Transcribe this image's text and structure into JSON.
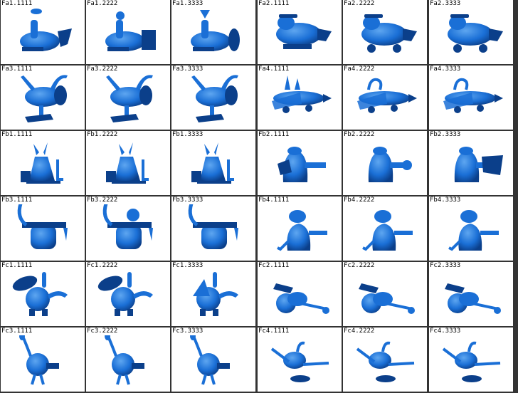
{
  "grid": {
    "columns": 6,
    "rows": 6,
    "object_color": "#1a6fd6",
    "object_dark": "#0b3f8a",
    "object_light": "#5ea6f0",
    "labels": [
      "Fa1.1111",
      "Fa1.2222",
      "Fa1.3333",
      "Fa2.1111",
      "Fa2.2222",
      "Fa2.3333",
      "Fa3.1111",
      "Fa3.2222",
      "Fa3.3333",
      "Fa4.1111",
      "Fa4.2222",
      "Fa4.3333",
      "Fb1.1111",
      "Fb1.2222",
      "Fb1.3333",
      "Fb2.1111",
      "Fb2.2222",
      "Fb2.3333",
      "Fb3.1111",
      "Fb3.2222",
      "Fb3.3333",
      "Fb4.1111",
      "Fb4.2222",
      "Fb4.3333",
      "Fc1.1111",
      "Fc1.2222",
      "Fc1.3333",
      "Fc2.1111",
      "Fc2.2222",
      "Fc2.3333",
      "Fc3.1111",
      "Fc3.2222",
      "Fc3.3333",
      "Fc4.1111",
      "Fc4.2222",
      "Fc4.3333"
    ]
  }
}
